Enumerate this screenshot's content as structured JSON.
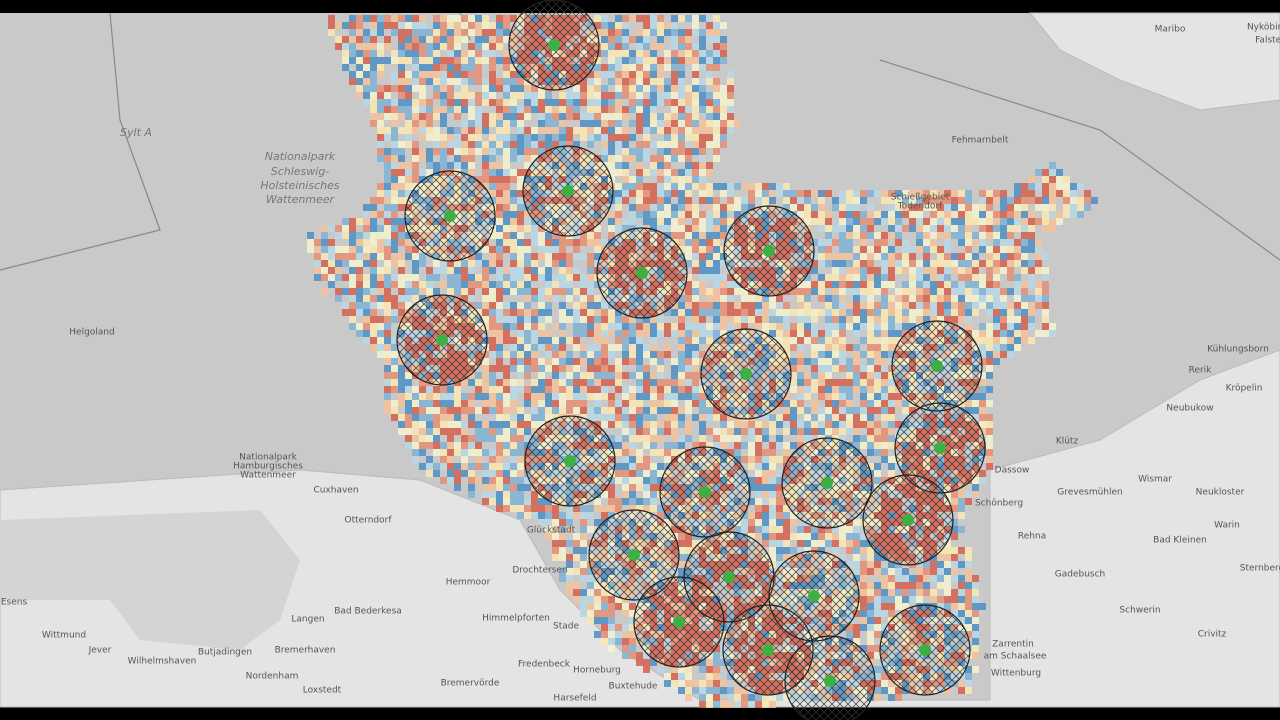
{
  "map": {
    "labels": [
      "Sylt A",
      "Nationalpark",
      "Schleswig-",
      "Holsteinisches",
      "Wattenmeer",
      "Helgoland",
      "Fehmarnbelt",
      "Schießgebiet",
      "Todendorf",
      "Kühlungsborn",
      "Rerik",
      "Kröpelin",
      "Neubukow",
      "Klütz",
      "Wismar",
      "Neukloster",
      "Dassow",
      "Schönberg",
      "Grevesmühlen",
      "Warin",
      "Rehna",
      "Bad Kleinen",
      "Gadebusch",
      "Schwerin",
      "Cuxhaven",
      "Otterndorf",
      "Hemmoor",
      "Drochtersen",
      "Bad Bederkesa",
      "Langen",
      "Bremerhaven",
      "Esens",
      "Wittmund",
      "Jever",
      "Wilhelmshaven",
      "Butjadingen",
      "Nordenham",
      "Loxstedt",
      "Himmelpforten",
      "Stade",
      "Fredenbeck",
      "Horneburg",
      "Bremervörde",
      "Harsefeld",
      "Buxtehude",
      "Zarrentin",
      "am Schaalsee",
      "Wittenburg",
      "Crivitz",
      "Maribo",
      "Nationalpark",
      "Hamburgisches",
      "Wattenmeer",
      "Sternberg",
      "Glückstadt",
      "Nyköbing",
      "Falster"
    ]
  }
}
